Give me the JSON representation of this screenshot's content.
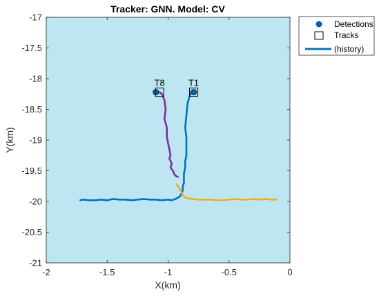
{
  "chart_data": {
    "type": "line",
    "title": "Tracker: GNN. Model: CV",
    "xlabel": "X(km)",
    "ylabel": "Y(km)",
    "xlim": [
      -2,
      0
    ],
    "ylim": [
      -21,
      -17
    ],
    "xticks": [
      -2,
      -1.5,
      -1,
      -0.5,
      0
    ],
    "xtick_labels": [
      "-2",
      "-1.5",
      "-1",
      "-0.5",
      "0"
    ],
    "yticks": [
      -17,
      -17.5,
      -18,
      -18.5,
      -19,
      -19.5,
      -20,
      -20.5,
      -21
    ],
    "ytick_labels": [
      "-17",
      "-17.5",
      "-18",
      "-18.5",
      "-19",
      "-19.5",
      "-20",
      "-20.5",
      "-21"
    ],
    "grid": false,
    "background_color": "#bde6f2",
    "legend": {
      "placement": "outside-top-right",
      "entries": [
        {
          "label": "Detections",
          "marker": "filled-circle",
          "color": "#0a5fa8"
        },
        {
          "label": "Tracks",
          "marker": "open-square",
          "color": "#000000"
        },
        {
          "label": "(history)",
          "marker": "line",
          "color": "#0072bd"
        }
      ]
    },
    "series": [
      {
        "color": "#0072bd",
        "x": [
          -0.79,
          -0.8,
          -0.82,
          -0.84,
          -0.85,
          -0.86,
          -0.85,
          -0.85,
          -0.85,
          -0.86,
          -0.86,
          -0.87,
          -0.87,
          -0.87,
          -0.88,
          -0.88,
          -0.89,
          -0.9,
          -0.92,
          -0.94,
          -0.97,
          -1.0,
          -1.05,
          -1.1,
          -1.15,
          -1.2,
          -1.25,
          -1.3,
          -1.35,
          -1.4,
          -1.45,
          -1.5,
          -1.55,
          -1.6,
          -1.65,
          -1.7,
          -1.72
        ],
        "y": [
          -18.22,
          -18.2,
          -18.26,
          -18.4,
          -18.6,
          -18.8,
          -18.95,
          -19.1,
          -19.25,
          -19.35,
          -19.45,
          -19.55,
          -19.62,
          -19.7,
          -19.75,
          -19.82,
          -19.87,
          -19.91,
          -19.94,
          -19.96,
          -19.98,
          -19.97,
          -19.98,
          -19.97,
          -19.97,
          -19.96,
          -19.97,
          -19.98,
          -19.97,
          -19.97,
          -19.96,
          -19.98,
          -19.97,
          -19.98,
          -19.98,
          -19.97,
          -19.98
        ]
      },
      {
        "color": "#7e2f8e",
        "x": [
          -1.07,
          -1.05,
          -1.03,
          -1.02,
          -1.03,
          -1.01,
          -1.01,
          -1.0,
          -0.99,
          -0.98,
          -0.99,
          -0.97,
          -0.98,
          -0.96,
          -0.95,
          -0.94,
          -0.92
        ],
        "y": [
          -18.22,
          -18.25,
          -18.35,
          -18.5,
          -18.65,
          -18.8,
          -18.95,
          -19.05,
          -19.15,
          -19.25,
          -19.3,
          -19.38,
          -19.45,
          -19.5,
          -19.55,
          -19.58,
          -19.6
        ]
      },
      {
        "color": "#edb120",
        "x": [
          -0.93,
          -0.91,
          -0.89,
          -0.87,
          -0.84,
          -0.8,
          -0.75,
          -0.7,
          -0.65,
          -0.6,
          -0.55,
          -0.5,
          -0.45,
          -0.4,
          -0.35,
          -0.3,
          -0.25,
          -0.2,
          -0.15,
          -0.11
        ],
        "y": [
          -19.72,
          -19.78,
          -19.85,
          -19.92,
          -19.95,
          -19.96,
          -19.97,
          -19.97,
          -19.97,
          -19.98,
          -19.98,
          -19.97,
          -19.96,
          -19.97,
          -19.97,
          -19.96,
          -19.97,
          -19.96,
          -19.97,
          -19.97
        ]
      }
    ],
    "detections": [
      {
        "x": -0.79,
        "y": -18.22
      },
      {
        "x": -1.1,
        "y": -18.22
      }
    ],
    "tracks": [
      {
        "label": "T1",
        "x": -0.79,
        "y": -18.22
      },
      {
        "label": "T8",
        "x": -1.07,
        "y": -18.22
      }
    ]
  }
}
